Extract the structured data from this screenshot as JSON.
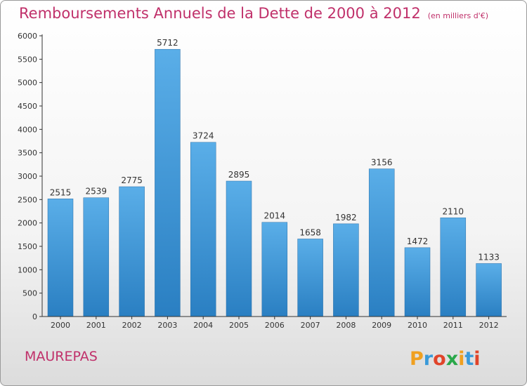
{
  "title": "Remboursements Annuels de la Dette de 2000 à 2012",
  "unit_note": "(en milliers d'€)",
  "commune": "MAUREPAS",
  "logo_text": "Proxiti",
  "colors": {
    "title": "#c0306a",
    "bar_top": "#5aaee8",
    "bar_bottom": "#2a7fc2",
    "axis": "#333333"
  },
  "chart_data": {
    "type": "bar",
    "title": "Remboursements Annuels de la Dette de 2000 à 2012",
    "subtitle": "(en milliers d'€)",
    "xlabel": "",
    "ylabel": "",
    "categories": [
      "2000",
      "2001",
      "2002",
      "2003",
      "2004",
      "2005",
      "2006",
      "2007",
      "2008",
      "2009",
      "2010",
      "2011",
      "2012"
    ],
    "values": [
      2515,
      2539,
      2775,
      5712,
      3724,
      2895,
      2014,
      1658,
      1982,
      3156,
      1472,
      2110,
      1133
    ],
    "ylim": [
      0,
      6000
    ],
    "yticks": [
      0,
      500,
      1000,
      1500,
      2000,
      2500,
      3000,
      3500,
      4000,
      4500,
      5000,
      5500,
      6000
    ],
    "grid": false,
    "legend": "none"
  }
}
